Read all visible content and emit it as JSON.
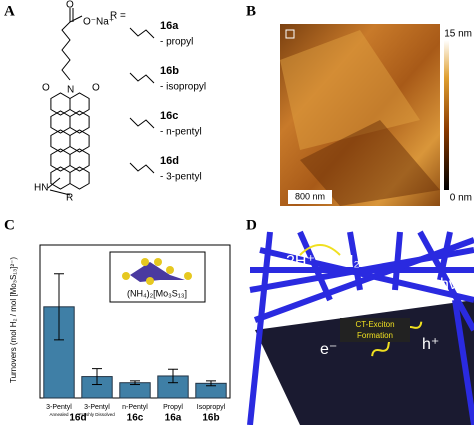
{
  "panel_labels": [
    "A",
    "B",
    "C",
    "D"
  ],
  "structure": {
    "atoms": [
      "O",
      "O⁻Na⁺",
      "O",
      "N",
      "O",
      "HN",
      "R"
    ],
    "r_equals": "R =",
    "substituents": [
      {
        "id": "16a",
        "name": "- propyl"
      },
      {
        "id": "16b",
        "name": "- isopropyl"
      },
      {
        "id": "16c",
        "name": "- n-pentyl"
      },
      {
        "id": "16d",
        "name": "- 3-pentyl"
      }
    ]
  },
  "afm": {
    "colorbar_max": "15 nm",
    "colorbar_min": "0 nm",
    "scale_bar": "800 nm"
  },
  "chart_data": {
    "type": "bar",
    "ylabel": "Turnovers (mol H₂ / mol [Mo₃S₁₃]²⁻)",
    "categories": [
      "3-Pentyl",
      "3-Pentyl",
      "n-Pentyl",
      "Propyl",
      "Isopropyl"
    ],
    "category_notes": [
      "Annealed",
      "Freshly Dissolved",
      null,
      null,
      null
    ],
    "groups": [
      "16d",
      "16c",
      "16a",
      "16b"
    ],
    "values": [
      1490,
      350,
      250,
      360,
      240
    ],
    "errors": [
      540,
      130,
      30,
      110,
      40
    ],
    "color": "#3f7fa6",
    "ylim": [
      0,
      2500
    ],
    "inset_label": "(NH₄)₂[Mo₃S₁₃]"
  },
  "scheme": {
    "reactant": "2H⁺",
    "product": "H₂",
    "light": "hν",
    "exciton": [
      "CT-Exciton",
      "Formation"
    ],
    "electron": "e⁻",
    "hole": "h⁺"
  }
}
